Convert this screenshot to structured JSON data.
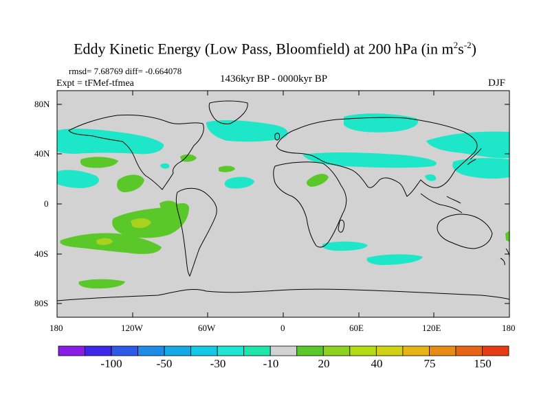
{
  "title_main": "Eddy Kinetic Energy (Low Pass, Bloomfield) at 200 hPa (in m",
  "title_sup1": "2",
  "title_mid": "s",
  "title_sup2": "-2",
  "title_end": ")",
  "stats": "rmsd= 7.68769 diff= -0.664078",
  "expt": "Expt = tFMef-tfmea",
  "period": "1436kyr BP - 0000kyr BP",
  "season": "DJF",
  "lat_ticks": [
    "80N",
    "40N",
    "0",
    "40S",
    "80S"
  ],
  "lon_ticks": [
    "180",
    "120W",
    "60W",
    "0",
    "60E",
    "120E",
    "180"
  ],
  "colorbar": {
    "colors": [
      "#8a1ee6",
      "#3c28e6",
      "#2d5ae6",
      "#1e8ce6",
      "#14aae6",
      "#14c8e6",
      "#1ee6d2",
      "#1ee6aa",
      "#d2d2d2",
      "#5ac828",
      "#8cd21e",
      "#b4dc14",
      "#d2d214",
      "#e6b414",
      "#e68c14",
      "#e66414",
      "#e63c14"
    ],
    "labels": [
      "-100",
      "-50",
      "-30",
      "-10",
      "20",
      "40",
      "75",
      "150"
    ]
  },
  "colors": {
    "land_background": "#d2d2d2",
    "cyan_anomaly": "#1ee6c8",
    "green_anomaly": "#5ac828",
    "lime_anomaly": "#a0d21e",
    "coast": "#000000"
  }
}
